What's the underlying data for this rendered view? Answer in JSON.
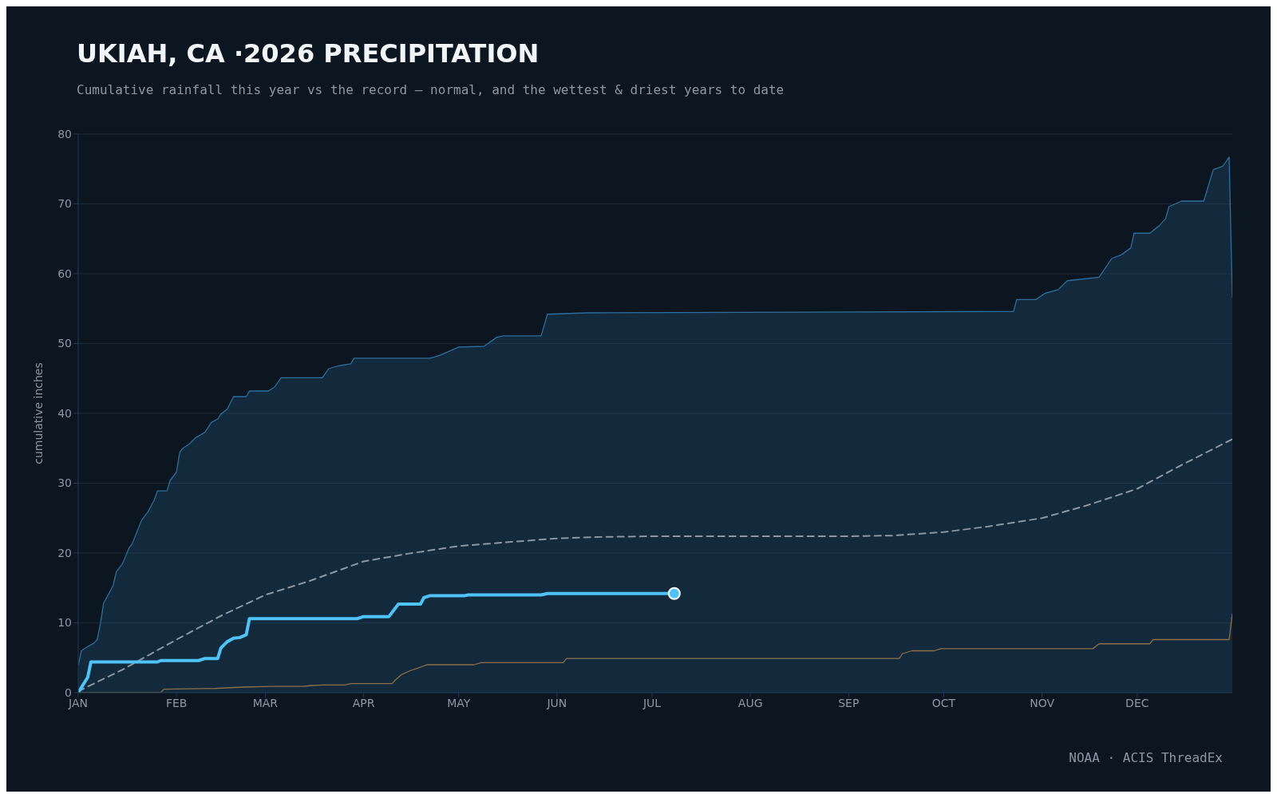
{
  "chart_data": {
    "type": "line",
    "title": "UKIAH, CA ·2026 PRECIPITATION",
    "subtitle": "Cumulative rainfall this year vs the record — normal, and the wettest & driest years to date",
    "ylabel": "cumulative inches",
    "annotations": [
      "NOAA · ACIS ThreadEx"
    ],
    "xlim": [
      "--01-01",
      "--12-31"
    ],
    "xticks": [
      {
        "value": "--01-01",
        "label": "JAN"
      },
      {
        "value": "--02-01",
        "label": "FEB"
      },
      {
        "value": "--03-01",
        "label": "MAR"
      },
      {
        "value": "--04-01",
        "label": "APR"
      },
      {
        "value": "--05-01",
        "label": "MAY"
      },
      {
        "value": "--06-01",
        "label": "JUN"
      },
      {
        "value": "--07-01",
        "label": "JUL"
      },
      {
        "value": "--08-01",
        "label": "AUG"
      },
      {
        "value": "--09-01",
        "label": "SEP"
      },
      {
        "value": "--10-01",
        "label": "OCT"
      },
      {
        "value": "--11-01",
        "label": "NOV"
      },
      {
        "value": "--12-01",
        "label": "DEC"
      }
    ],
    "ylim": [
      0,
      80
    ],
    "yticks": [
      0,
      10,
      20,
      30,
      40,
      50,
      60,
      70,
      80
    ],
    "grid": "y",
    "marker": "none",
    "series": [
      {
        "type": "area",
        "color": "#2e6f9e",
        "x": [
          "--01-01",
          "--01-02",
          "--01-04",
          "--01-06",
          "--01-07",
          "--01-08",
          "--01-09",
          "--01-12",
          "--01-13",
          "--01-15",
          "--01-17",
          "--01-18",
          "--01-21",
          "--01-23",
          "--01-25",
          "--01-26",
          "--01-29",
          "--01-30",
          "--02-01",
          "--02-02",
          "--02-03",
          "--02-05",
          "--02-07",
          "--02-10",
          "--02-12",
          "--02-14",
          "--02-15",
          "--02-17",
          "--02-19",
          "--02-23",
          "--02-24",
          "--03-02",
          "--03-04",
          "--03-06",
          "--03-19",
          "--03-21",
          "--03-24",
          "--03-28",
          "--03-29",
          "--04-22",
          "--04-25",
          "--05-01",
          "--05-09",
          "--05-13",
          "--05-15",
          "--05-27",
          "--05-29",
          "--06-11",
          "--10-23",
          "--10-24",
          "--10-30",
          "--11-02",
          "--11-06",
          "--11-09",
          "--11-19",
          "--11-23",
          "--11-26",
          "--11-29",
          "--11-30",
          "--12-05",
          "--12-08",
          "--12-10",
          "--12-11",
          "--12-15",
          "--12-22",
          "--12-25",
          "--12-28",
          "--12-30",
          "--12-31"
        ],
        "values": [
          3.9,
          6.0,
          6.6,
          7.1,
          7.6,
          9.9,
          12.8,
          15.3,
          17.3,
          18.5,
          20.7,
          21.3,
          24.7,
          25.9,
          27.6,
          28.9,
          28.9,
          30.4,
          31.6,
          34.4,
          35.0,
          35.6,
          36.5,
          37.3,
          38.7,
          39.2,
          39.9,
          40.6,
          42.4,
          42.4,
          43.2,
          43.2,
          43.8,
          45.1,
          45.1,
          46.4,
          46.8,
          47.1,
          47.9,
          47.9,
          48.3,
          49.5,
          49.6,
          50.9,
          51.1,
          51.1,
          54.2,
          54.4,
          54.6,
          56.3,
          56.3,
          57.2,
          57.7,
          59.0,
          59.5,
          62.2,
          62.7,
          63.7,
          65.8,
          65.8,
          66.9,
          67.9,
          69.6,
          70.4,
          70.4,
          74.9,
          75.4,
          76.7,
          56.6
        ]
      },
      {
        "color": "#8c7048",
        "x": [
          "--01-01",
          "--01-27",
          "--01-28",
          "--02-13",
          "--02-22",
          "--03-03",
          "--03-13",
          "--03-15",
          "--03-19",
          "--03-26",
          "--03-28",
          "--04-10",
          "--04-11",
          "--04-13",
          "--04-16",
          "--04-18",
          "--04-21",
          "--05-06",
          "--05-08",
          "--06-03",
          "--06-04",
          "--09-17",
          "--09-18",
          "--09-21",
          "--09-28",
          "--09-30",
          "--11-17",
          "--11-19",
          "--12-05",
          "--12-06",
          "--12-30",
          "--12-31"
        ],
        "values": [
          0,
          0,
          0.5,
          0.6,
          0.8,
          0.9,
          0.9,
          1.0,
          1.1,
          1.1,
          1.3,
          1.3,
          1.8,
          2.6,
          3.2,
          3.5,
          4.0,
          4.0,
          4.3,
          4.3,
          4.9,
          4.9,
          5.6,
          6.0,
          6.0,
          6.3,
          6.3,
          7.0,
          7.0,
          7.6,
          7.6,
          11.3
        ]
      },
      {
        "color": "#8b97a3",
        "line_style": "dashed",
        "x": [
          "--01-01",
          "--01-15",
          "--02-01",
          "--02-15",
          "--03-01",
          "--03-15",
          "--04-01",
          "--04-15",
          "--05-01",
          "--05-15",
          "--06-01",
          "--06-15",
          "--07-01",
          "--08-01",
          "--09-01",
          "--09-15",
          "--10-01",
          "--10-15",
          "--11-01",
          "--11-15",
          "--12-01",
          "--12-15",
          "--12-31"
        ],
        "values": [
          0.2,
          3.3,
          7.6,
          11.0,
          14.0,
          16.0,
          18.8,
          19.9,
          21.0,
          21.5,
          22.1,
          22.3,
          22.4,
          22.4,
          22.4,
          22.5,
          23.0,
          23.8,
          25.0,
          26.8,
          29.2,
          32.6,
          36.3
        ]
      },
      {
        "color": "#4fc3f7",
        "x": [
          "--01-01",
          "--01-04",
          "--01-05",
          "--01-26",
          "--01-27",
          "--02-08",
          "--02-10",
          "--02-14",
          "--02-15",
          "--02-17",
          "--02-19",
          "--02-21",
          "--02-23",
          "--02-24",
          "--03-30",
          "--04-01",
          "--04-09",
          "--04-12",
          "--04-19",
          "--04-20",
          "--04-22",
          "--05-03",
          "--05-04",
          "--05-27",
          "--05-29",
          "--07-08"
        ],
        "values": [
          0,
          2.2,
          4.4,
          4.4,
          4.6,
          4.6,
          4.9,
          4.9,
          6.4,
          7.3,
          7.8,
          7.9,
          8.3,
          10.6,
          10.6,
          10.9,
          10.9,
          12.7,
          12.7,
          13.6,
          13.9,
          13.9,
          14.0,
          14.0,
          14.2,
          14.2
        ]
      },
      {
        "type": "scatter",
        "color": "#4fc3f7",
        "marker": "circle",
        "x": [
          "--07-08"
        ],
        "values": [
          14.2
        ]
      }
    ]
  }
}
